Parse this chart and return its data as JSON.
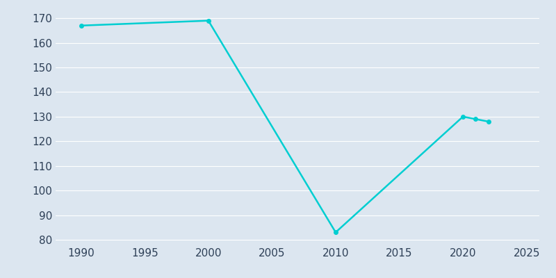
{
  "years": [
    1990,
    2000,
    2010,
    2020,
    2021,
    2022
  ],
  "population": [
    167,
    169,
    83,
    130,
    129,
    128
  ],
  "line_color": "#00CED1",
  "marker": "o",
  "marker_size": 4,
  "line_width": 1.8,
  "background_color": "#dce6f0",
  "xlim": [
    1988,
    2026
  ],
  "ylim": [
    78,
    174
  ],
  "yticks": [
    80,
    90,
    100,
    110,
    120,
    130,
    140,
    150,
    160,
    170
  ],
  "xticks": [
    1990,
    1995,
    2000,
    2005,
    2010,
    2015,
    2020,
    2025
  ],
  "grid_color": "#ffffff",
  "grid_alpha": 1.0,
  "tick_label_color": "#2e4057",
  "tick_fontsize": 11
}
